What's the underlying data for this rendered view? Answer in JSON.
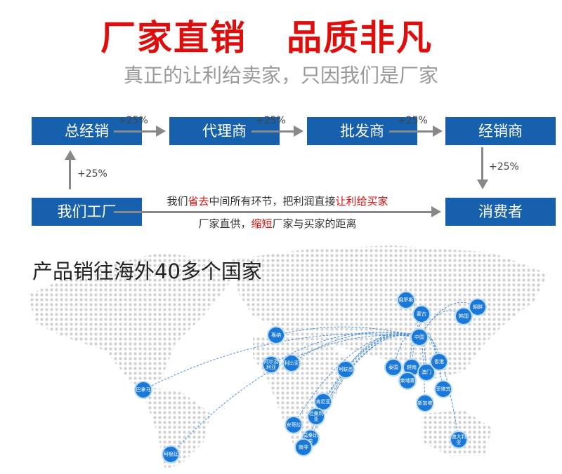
{
  "header": {
    "title_left": "厂家直销",
    "title_right": "品质非凡",
    "subtitle": "真正的让利给卖家，只因我们是厂家"
  },
  "flow": {
    "boxes": {
      "general": "总经销",
      "agent": "代理商",
      "wholesale": "批发商",
      "dealer": "经销商",
      "factory": "我们工厂",
      "consumer": "消费者"
    },
    "markup": "+25%",
    "line1": {
      "a": "我们",
      "b": "省去",
      "c": "中间所有环节，把利润直接",
      "d": "让利给买家"
    },
    "line2": {
      "a": "厂家直供，",
      "b": "缩短",
      "c": "厂家与买家的距离"
    }
  },
  "map": {
    "title": "产品销往海外40多个国家",
    "hub": "中国",
    "countries": [
      "俄罗斯",
      "蒙古",
      "朝鲜",
      "韩国",
      "戛纳",
      "阿尔及利亚",
      "利比亚",
      "阿联酋",
      "泰国",
      "越南",
      "柬埔寨",
      "澳门",
      "香港",
      "菲律宾",
      "新加坡",
      "肯尼亚",
      "坦桑利亚",
      "安哥拉",
      "莫桑比克",
      "南非",
      "澳大利亚",
      "巴拿马",
      "阿根廷"
    ]
  },
  "colors": {
    "accent_red": "#e00d0d",
    "box_blue": "#1660ae",
    "node_blue": "#1a78d8"
  }
}
